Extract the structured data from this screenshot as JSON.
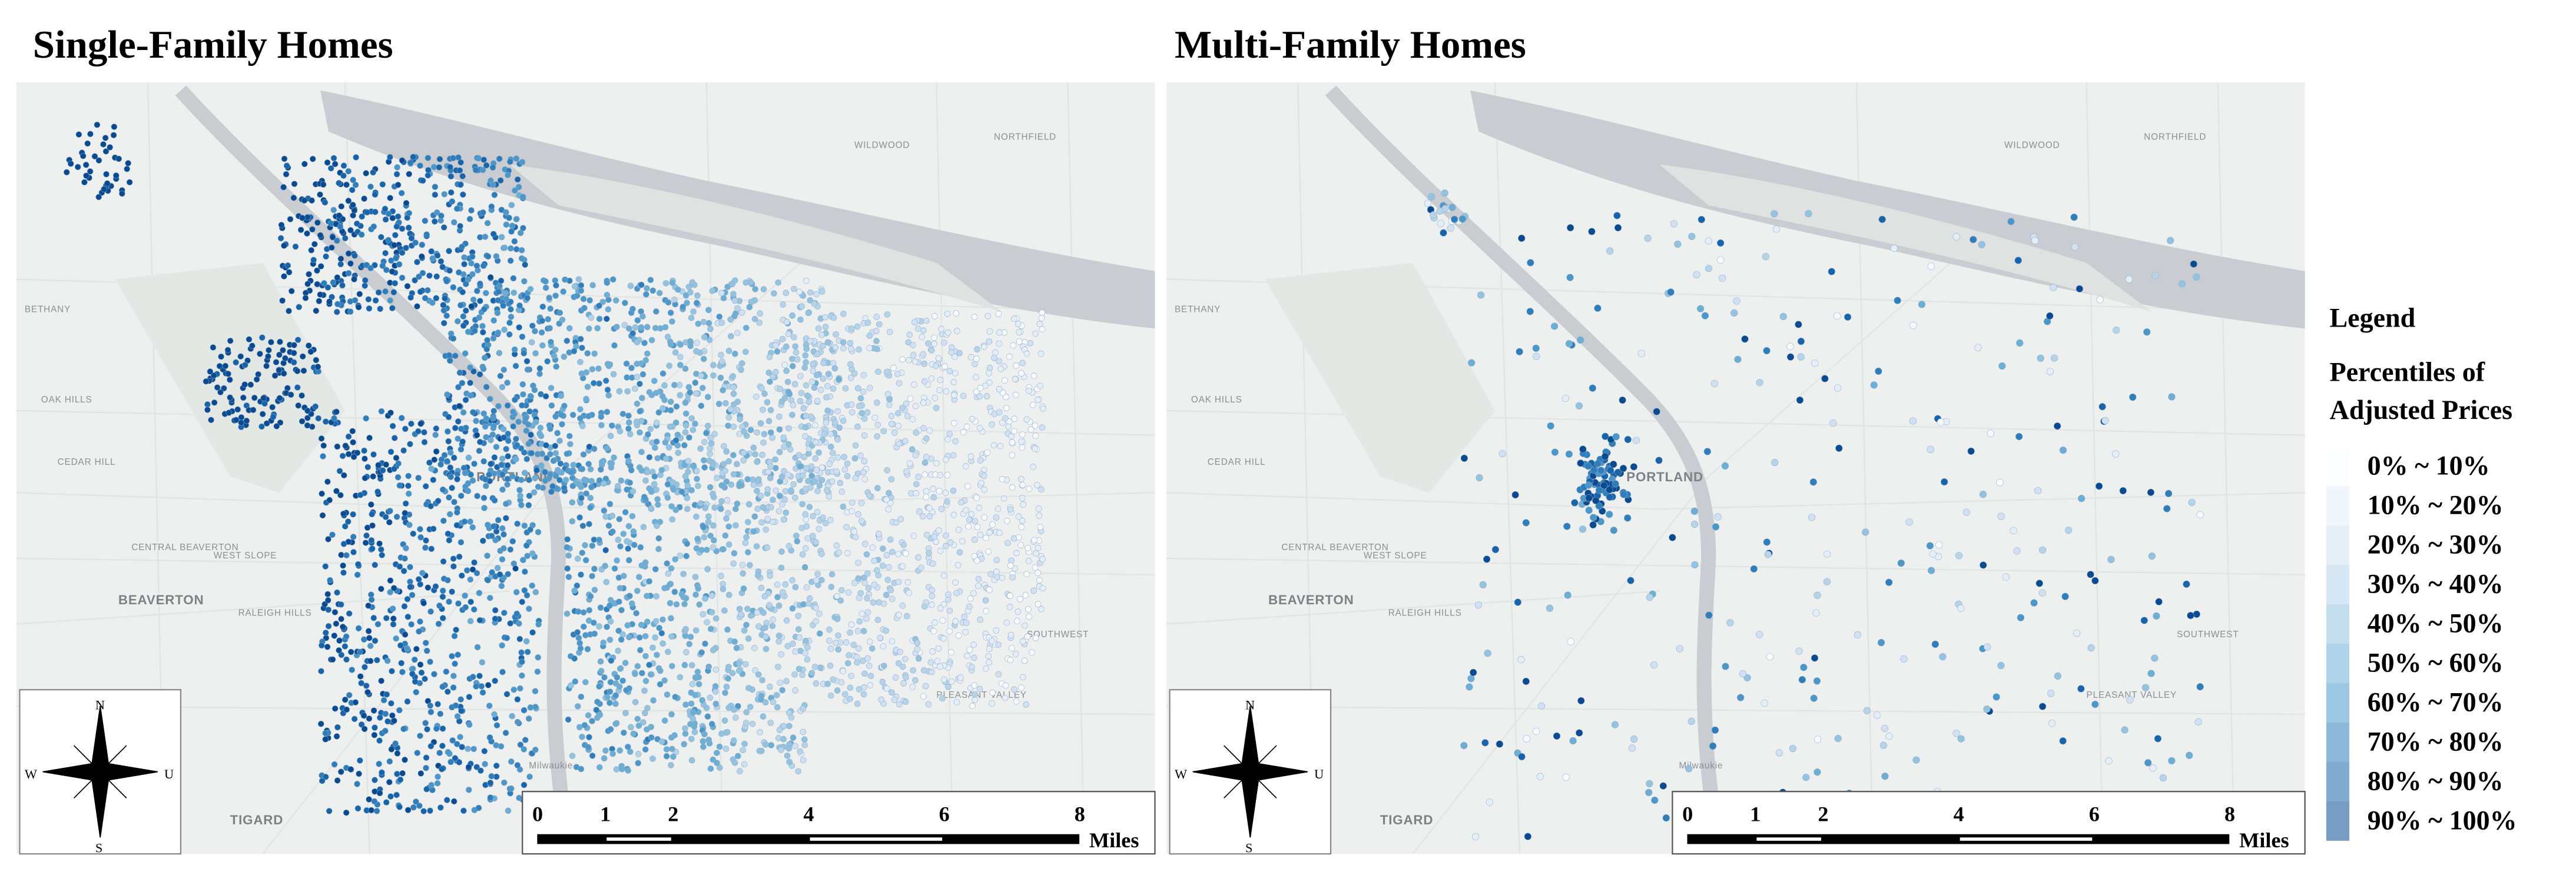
{
  "panels": [
    {
      "title": "Single-Family Homes"
    },
    {
      "title": "Multi-Family Homes"
    }
  ],
  "map_labels": [
    "PORTLAND",
    "BEAVERTON",
    "TIGARD",
    "Milwaukie",
    "CEDAR HILL",
    "OAK HILLS",
    "BETHANY",
    "WEST SLOPE",
    "CENTRAL BEAVERTON",
    "RALEIGH HILLS",
    "NORTHFIELD",
    "WILDWOOD",
    "SOUTHWEST",
    "PLEASANT VALLEY"
  ],
  "compass": {
    "north": "N",
    "south": "S",
    "west": "W",
    "east": "U"
  },
  "scale_bar": {
    "ticks": [
      0,
      1,
      2,
      4,
      6,
      8
    ],
    "unit": "Miles"
  },
  "legend": {
    "title": "Legend",
    "subtitle": [
      "Percentiles of",
      "Adjusted Prices"
    ],
    "items": [
      {
        "label": "0% ~ 10%",
        "color": "#f7fbff"
      },
      {
        "label": "10% ~ 20%",
        "color": "#e3eef9"
      },
      {
        "label": "20% ~ 30%",
        "color": "#cfe1f2"
      },
      {
        "label": "30% ~ 40%",
        "color": "#b5d4e9"
      },
      {
        "label": "40% ~ 50%",
        "color": "#93c3df"
      },
      {
        "label": "50% ~ 60%",
        "color": "#6daed5"
      },
      {
        "label": "60% ~ 70%",
        "color": "#4b97c9"
      },
      {
        "label": "70% ~ 80%",
        "color": "#2f7ebc"
      },
      {
        "label": "80% ~ 90%",
        "color": "#1864aa"
      },
      {
        "label": "90% ~ 100%",
        "color": "#0a4a90"
      }
    ]
  }
}
